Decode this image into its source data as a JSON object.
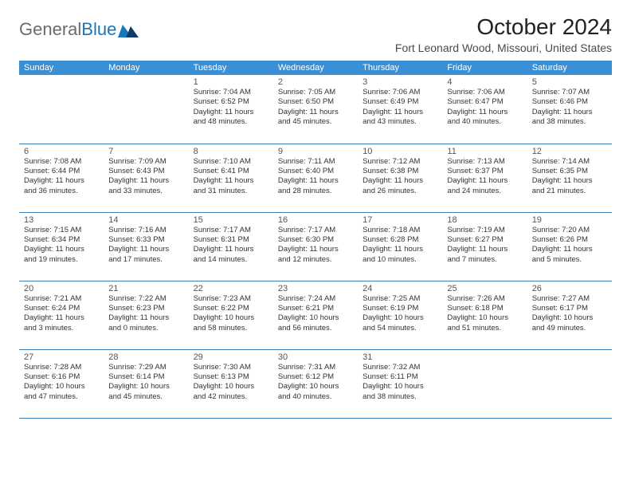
{
  "logo": {
    "text_general": "General",
    "text_blue": "Blue"
  },
  "title": "October 2024",
  "location": "Fort Leonard Wood, Missouri, United States",
  "colors": {
    "header_bg": "#3b8fd4",
    "header_text": "#ffffff",
    "row_border": "#3b7fb6",
    "logo_gray": "#6b6b6b",
    "logo_blue": "#1876bd",
    "body_text": "#333333"
  },
  "day_headers": [
    "Sunday",
    "Monday",
    "Tuesday",
    "Wednesday",
    "Thursday",
    "Friday",
    "Saturday"
  ],
  "weeks": [
    [
      null,
      null,
      {
        "d": "1",
        "sr": "Sunrise: 7:04 AM",
        "ss": "Sunset: 6:52 PM",
        "dl1": "Daylight: 11 hours",
        "dl2": "and 48 minutes."
      },
      {
        "d": "2",
        "sr": "Sunrise: 7:05 AM",
        "ss": "Sunset: 6:50 PM",
        "dl1": "Daylight: 11 hours",
        "dl2": "and 45 minutes."
      },
      {
        "d": "3",
        "sr": "Sunrise: 7:06 AM",
        "ss": "Sunset: 6:49 PM",
        "dl1": "Daylight: 11 hours",
        "dl2": "and 43 minutes."
      },
      {
        "d": "4",
        "sr": "Sunrise: 7:06 AM",
        "ss": "Sunset: 6:47 PM",
        "dl1": "Daylight: 11 hours",
        "dl2": "and 40 minutes."
      },
      {
        "d": "5",
        "sr": "Sunrise: 7:07 AM",
        "ss": "Sunset: 6:46 PM",
        "dl1": "Daylight: 11 hours",
        "dl2": "and 38 minutes."
      }
    ],
    [
      {
        "d": "6",
        "sr": "Sunrise: 7:08 AM",
        "ss": "Sunset: 6:44 PM",
        "dl1": "Daylight: 11 hours",
        "dl2": "and 36 minutes."
      },
      {
        "d": "7",
        "sr": "Sunrise: 7:09 AM",
        "ss": "Sunset: 6:43 PM",
        "dl1": "Daylight: 11 hours",
        "dl2": "and 33 minutes."
      },
      {
        "d": "8",
        "sr": "Sunrise: 7:10 AM",
        "ss": "Sunset: 6:41 PM",
        "dl1": "Daylight: 11 hours",
        "dl2": "and 31 minutes."
      },
      {
        "d": "9",
        "sr": "Sunrise: 7:11 AM",
        "ss": "Sunset: 6:40 PM",
        "dl1": "Daylight: 11 hours",
        "dl2": "and 28 minutes."
      },
      {
        "d": "10",
        "sr": "Sunrise: 7:12 AM",
        "ss": "Sunset: 6:38 PM",
        "dl1": "Daylight: 11 hours",
        "dl2": "and 26 minutes."
      },
      {
        "d": "11",
        "sr": "Sunrise: 7:13 AM",
        "ss": "Sunset: 6:37 PM",
        "dl1": "Daylight: 11 hours",
        "dl2": "and 24 minutes."
      },
      {
        "d": "12",
        "sr": "Sunrise: 7:14 AM",
        "ss": "Sunset: 6:35 PM",
        "dl1": "Daylight: 11 hours",
        "dl2": "and 21 minutes."
      }
    ],
    [
      {
        "d": "13",
        "sr": "Sunrise: 7:15 AM",
        "ss": "Sunset: 6:34 PM",
        "dl1": "Daylight: 11 hours",
        "dl2": "and 19 minutes."
      },
      {
        "d": "14",
        "sr": "Sunrise: 7:16 AM",
        "ss": "Sunset: 6:33 PM",
        "dl1": "Daylight: 11 hours",
        "dl2": "and 17 minutes."
      },
      {
        "d": "15",
        "sr": "Sunrise: 7:17 AM",
        "ss": "Sunset: 6:31 PM",
        "dl1": "Daylight: 11 hours",
        "dl2": "and 14 minutes."
      },
      {
        "d": "16",
        "sr": "Sunrise: 7:17 AM",
        "ss": "Sunset: 6:30 PM",
        "dl1": "Daylight: 11 hours",
        "dl2": "and 12 minutes."
      },
      {
        "d": "17",
        "sr": "Sunrise: 7:18 AM",
        "ss": "Sunset: 6:28 PM",
        "dl1": "Daylight: 11 hours",
        "dl2": "and 10 minutes."
      },
      {
        "d": "18",
        "sr": "Sunrise: 7:19 AM",
        "ss": "Sunset: 6:27 PM",
        "dl1": "Daylight: 11 hours",
        "dl2": "and 7 minutes."
      },
      {
        "d": "19",
        "sr": "Sunrise: 7:20 AM",
        "ss": "Sunset: 6:26 PM",
        "dl1": "Daylight: 11 hours",
        "dl2": "and 5 minutes."
      }
    ],
    [
      {
        "d": "20",
        "sr": "Sunrise: 7:21 AM",
        "ss": "Sunset: 6:24 PM",
        "dl1": "Daylight: 11 hours",
        "dl2": "and 3 minutes."
      },
      {
        "d": "21",
        "sr": "Sunrise: 7:22 AM",
        "ss": "Sunset: 6:23 PM",
        "dl1": "Daylight: 11 hours",
        "dl2": "and 0 minutes."
      },
      {
        "d": "22",
        "sr": "Sunrise: 7:23 AM",
        "ss": "Sunset: 6:22 PM",
        "dl1": "Daylight: 10 hours",
        "dl2": "and 58 minutes."
      },
      {
        "d": "23",
        "sr": "Sunrise: 7:24 AM",
        "ss": "Sunset: 6:21 PM",
        "dl1": "Daylight: 10 hours",
        "dl2": "and 56 minutes."
      },
      {
        "d": "24",
        "sr": "Sunrise: 7:25 AM",
        "ss": "Sunset: 6:19 PM",
        "dl1": "Daylight: 10 hours",
        "dl2": "and 54 minutes."
      },
      {
        "d": "25",
        "sr": "Sunrise: 7:26 AM",
        "ss": "Sunset: 6:18 PM",
        "dl1": "Daylight: 10 hours",
        "dl2": "and 51 minutes."
      },
      {
        "d": "26",
        "sr": "Sunrise: 7:27 AM",
        "ss": "Sunset: 6:17 PM",
        "dl1": "Daylight: 10 hours",
        "dl2": "and 49 minutes."
      }
    ],
    [
      {
        "d": "27",
        "sr": "Sunrise: 7:28 AM",
        "ss": "Sunset: 6:16 PM",
        "dl1": "Daylight: 10 hours",
        "dl2": "and 47 minutes."
      },
      {
        "d": "28",
        "sr": "Sunrise: 7:29 AM",
        "ss": "Sunset: 6:14 PM",
        "dl1": "Daylight: 10 hours",
        "dl2": "and 45 minutes."
      },
      {
        "d": "29",
        "sr": "Sunrise: 7:30 AM",
        "ss": "Sunset: 6:13 PM",
        "dl1": "Daylight: 10 hours",
        "dl2": "and 42 minutes."
      },
      {
        "d": "30",
        "sr": "Sunrise: 7:31 AM",
        "ss": "Sunset: 6:12 PM",
        "dl1": "Daylight: 10 hours",
        "dl2": "and 40 minutes."
      },
      {
        "d": "31",
        "sr": "Sunrise: 7:32 AM",
        "ss": "Sunset: 6:11 PM",
        "dl1": "Daylight: 10 hours",
        "dl2": "and 38 minutes."
      },
      null,
      null
    ]
  ]
}
